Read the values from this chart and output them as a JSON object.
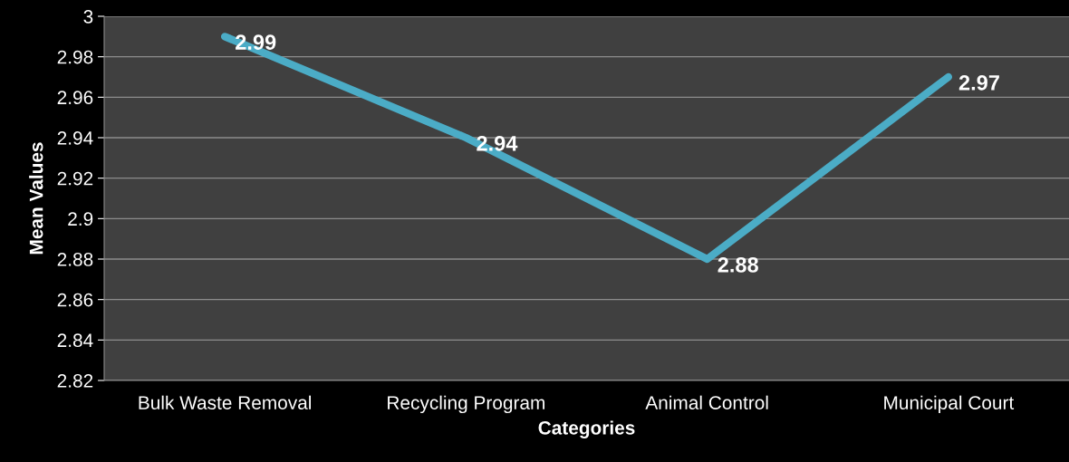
{
  "chart_data": {
    "type": "line",
    "xlabel": "Categories",
    "ylabel": "Mean Values",
    "categories": [
      "Bulk Waste Removal",
      "Recycling Program",
      "Animal Control",
      "Municipal Court"
    ],
    "series": [
      {
        "color": "#4bacc6",
        "values": [
          2.99,
          2.94,
          2.88,
          2.97
        ]
      }
    ],
    "ylim": [
      2.82,
      3
    ],
    "yticks": [
      2.82,
      2.84,
      2.86,
      2.88,
      2.9,
      2.92,
      2.94,
      2.96,
      2.98,
      3
    ],
    "grid": "y",
    "data_labels": true,
    "marker": "none",
    "line_style": "solid"
  }
}
